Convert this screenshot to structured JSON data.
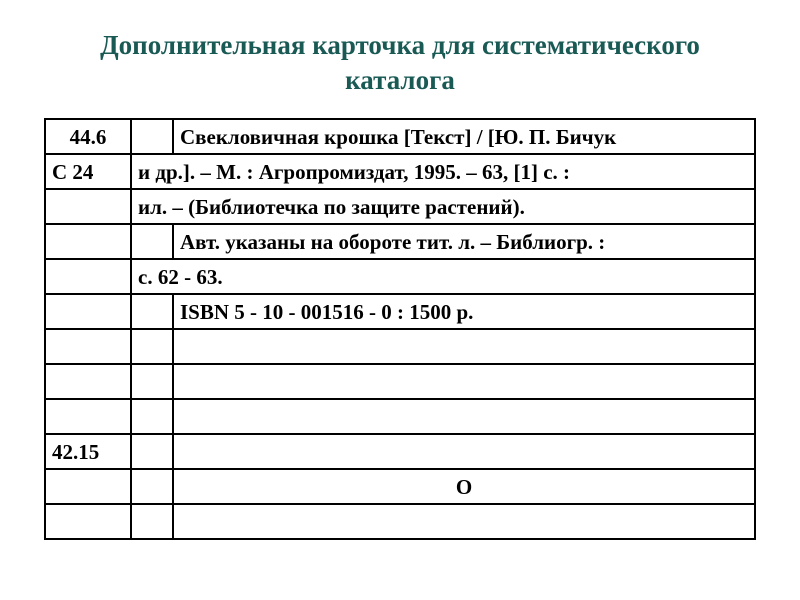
{
  "title_color": "#1a5a55",
  "title_fontsize": 27,
  "title_line1": "Дополнительная карточка для систематического",
  "title_line2": "каталога",
  "cell_fontsize": 21,
  "border_color": "#000000",
  "rows": {
    "r0": {
      "a": "44.6",
      "c": "Свекловичная  крошка  [Текст] /  [Ю. П. Бичук"
    },
    "r1": {
      "a": "С 24",
      "bc": "и др.]. –  М. :  Агропромиздат,  1995.  –  63, [1] с. :"
    },
    "r2": {
      "bc": "ил. –  (Библиотечка по защите растений)."
    },
    "r3": {
      "c": "Авт. указаны на обороте тит. л. – Библиогр. :"
    },
    "r4": {
      "bc": "с. 62 - 63."
    },
    "r5": {
      "c": "ISBN 5 - 10 - 001516 - 0 : 1500 р."
    },
    "r9": {
      "a": "42.15"
    },
    "r10": {
      "c": "О"
    }
  }
}
